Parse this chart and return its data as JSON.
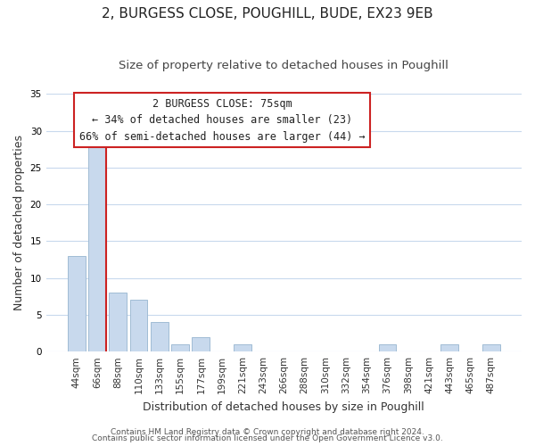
{
  "title": "2, BURGESS CLOSE, POUGHILL, BUDE, EX23 9EB",
  "subtitle": "Size of property relative to detached houses in Poughill",
  "xlabel": "Distribution of detached houses by size in Poughill",
  "ylabel": "Number of detached properties",
  "bar_labels": [
    "44sqm",
    "66sqm",
    "88sqm",
    "110sqm",
    "133sqm",
    "155sqm",
    "177sqm",
    "199sqm",
    "221sqm",
    "243sqm",
    "266sqm",
    "288sqm",
    "310sqm",
    "332sqm",
    "354sqm",
    "376sqm",
    "398sqm",
    "421sqm",
    "443sqm",
    "465sqm",
    "487sqm"
  ],
  "bar_values": [
    13,
    28,
    8,
    7,
    4,
    1,
    2,
    0,
    1,
    0,
    0,
    0,
    0,
    0,
    0,
    1,
    0,
    0,
    1,
    0,
    1
  ],
  "bar_color": "#c8d9ed",
  "bar_edge_color": "#a0bcd4",
  "highlight_bar_index": 1,
  "highlight_color": "#cc2222",
  "ylim": [
    0,
    35
  ],
  "yticks": [
    0,
    5,
    10,
    15,
    20,
    25,
    30,
    35
  ],
  "annotation_title": "2 BURGESS CLOSE: 75sqm",
  "annotation_line1": "← 34% of detached houses are smaller (23)",
  "annotation_line2": "66% of semi-detached houses are larger (44) →",
  "annotation_box_color": "#ffffff",
  "annotation_border_color": "#cc2222",
  "footer_line1": "Contains HM Land Registry data © Crown copyright and database right 2024.",
  "footer_line2": "Contains public sector information licensed under the Open Government Licence v3.0.",
  "background_color": "#ffffff",
  "grid_color": "#c8d9ed",
  "title_fontsize": 11,
  "subtitle_fontsize": 9.5,
  "axis_label_fontsize": 9,
  "tick_fontsize": 7.5,
  "annotation_fontsize": 8.5,
  "footer_fontsize": 6.5
}
